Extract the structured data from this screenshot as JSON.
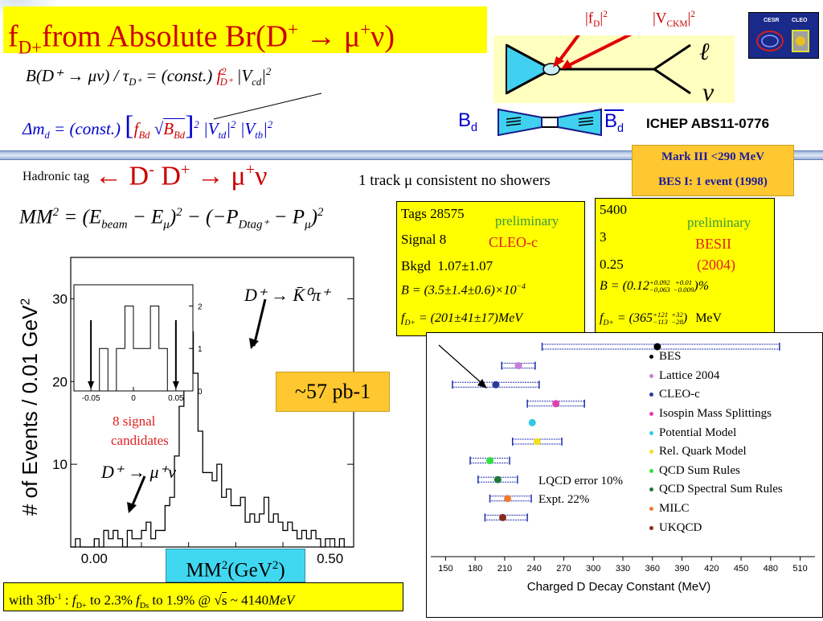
{
  "slide": {
    "title_text": "from Absolute Br(D",
    "title_prefix": "f",
    "title_sub": "D+",
    "title_sup": "+",
    "title_arrow": "→",
    "title_tail": "μ",
    "title_tail_sup": "+",
    "title_tail_end": "ν)"
  },
  "header_diagram": {
    "fd_label": "|f",
    "fd_sub": "D",
    "fd_tail": "|",
    "fd_sup": "2",
    "vckm_label": "|V",
    "vckm_sub": "CKM",
    "vckm_tail": "|",
    "vckm_sup": "2",
    "lepton_symbol": "ℓ",
    "neutrino_symbol": "ν",
    "bd_left": "B",
    "bd_left_sub": "d",
    "bd_right": "B",
    "bd_right_sub": "d",
    "ichep_label": "ICHEP ABS11-0776",
    "logo_left": "CESR",
    "logo_right": "CLEO"
  },
  "formulas": {
    "br_formula": "B(D⁺ → μν) / τ",
    "br_formula_sub": "D⁺",
    "br_formula_mid": " = (const.)",
    "br_formula_f": "f",
    "br_formula_f_sub": "D⁺",
    "br_formula_f_sup": "2",
    "br_formula_v": "|V",
    "br_formula_v_sub": "cd",
    "br_formula_v_tail": "|",
    "br_formula_v_sup": "2",
    "dm_formula_lhs": "Δm",
    "dm_formula_lhs_sub": "d",
    "dm_formula_mid": " = (const.)",
    "dm_formula_bracket": "f",
    "dm_formula_bracket_sub": "Bd",
    "dm_formula_sqrt": "B",
    "dm_formula_sqrt_sub": "Bd",
    "dm_formula_sq": "2",
    "dm_formula_vtd": "|V",
    "dm_formula_vtd_sub": "td",
    "dm_formula_vtd_tail": "|",
    "dm_formula_vtd_sup": "2",
    "dm_formula_vtb": "|V",
    "dm_formula_vtb_sub": "tb",
    "dm_formula_vtb_tail": "|",
    "dm_formula_vtb_sup": "2",
    "mm_formula_lhs": "MM",
    "mm_formula_lhs_sup": "2",
    "mm_formula_body": " = (E",
    "mm_formula_beam": "beam",
    "mm_formula_mid": " − E",
    "mm_formula_mu": "μ",
    "mm_formula_close": ")",
    "mm_formula_sq": "2",
    "mm_formula_p": " − (−P",
    "mm_formula_dtag": "Dtag⁺",
    "mm_formula_minus": " − P",
    "mm_formula_mu2": "μ",
    "mm_formula_close2": ")",
    "mm_formula_sq2": "2"
  },
  "tag_line": {
    "hadronic_tag": "Hadronic tag",
    "arrow": "←",
    "d_minus": "D",
    "d_minus_sup": "-",
    "d_plus": "D",
    "d_plus_sup": "+",
    "decay_arrow": "→",
    "mu": "μ",
    "mu_sup": "+",
    "nu": "ν",
    "note": "1 track μ consistent no showers"
  },
  "experiments": {
    "mark3": "Mark III <290 MeV",
    "bes1": "BES I: 1 event (1998)",
    "cleo_box": {
      "tags_label": "Tags",
      "tags_value": "28575",
      "signal_label": "Signal",
      "signal_value": "8",
      "bkgd_label": "Bkgd",
      "bkgd_value": "1.07±1.07",
      "preliminary": "preliminary",
      "experiment": "CLEO-c",
      "br_result": "B = (3.5±1.4±0.6)×10",
      "br_exp": "−4",
      "fd_result_prefix": "f",
      "fd_result_sub": "D+",
      "fd_result_value": " = (201±41±17)MeV"
    },
    "besii_box": {
      "tags_value": "5400",
      "signal_value": "3",
      "bkgd_value": "0.25",
      "preliminary": "preliminary",
      "experiment": "BESII",
      "year": "(2004)",
      "br_prefix": "B = (0.12",
      "br_up1": "+0.092",
      "br_dn1": "−0,063",
      "br_up2": "+0.01",
      "br_dn2": "−0.009",
      "br_suffix": ")%",
      "fd_prefix": "f",
      "fd_sub": "D+",
      "fd_value": " = (365",
      "fd_up1": "+121",
      "fd_dn1": "−113",
      "fd_up2": "+32",
      "fd_dn2": "−28",
      "fd_suffix": ")",
      "fd_unit": "MeV"
    }
  },
  "histogram": {
    "ylabel": "# of Events / 0.01 GeV",
    "ylabel_sup": "2",
    "xlabel": "MM",
    "xlabel_sup": "2",
    "xlabel_unit_open": "(GeV",
    "xlabel_unit_sup": "2",
    "xlabel_unit_close": ")",
    "k0_label": "D⁺ → K̄⁰π⁺",
    "mu_nu_label": "D⁺ → μ⁺ν",
    "lumi": "~57 pb-1",
    "signal_note_1": "8 signal",
    "signal_note_2": "candidates"
  },
  "bottom_note": {
    "text_start": "with 3fb",
    "text_start_sup": "-1",
    "text_colon": " : ",
    "fd": "f",
    "fd_sub": "D+",
    "fd_to": " to 2.3%   ",
    "fds": "f",
    "fds_sub": "Ds",
    "fds_to": " to 1.9% @ ",
    "sqrt_s": "s",
    "energy": " ~ 4140",
    "energy_unit": "MeV"
  },
  "comparison": {
    "lqcd_error": "LQCD error 10%",
    "expt_error": "Expt.  22%"
  },
  "chart_data": [
    {
      "type": "histogram",
      "title": "",
      "xlabel": "MM² (GeV²)",
      "ylabel": "# of Events / 0.01 GeV²",
      "xlim": [
        -0.05,
        0.55
      ],
      "ylim": [
        0,
        35
      ],
      "xticks": [
        "0.00",
        "0.50"
      ],
      "yticks": [
        "10",
        "20",
        "30"
      ],
      "bin_width": 0.01,
      "bin_left_edges": [
        -0.05,
        -0.04,
        -0.03,
        -0.02,
        -0.01,
        0.0,
        0.01,
        0.02,
        0.03,
        0.04,
        0.05,
        0.06,
        0.07,
        0.08,
        0.09,
        0.1,
        0.11,
        0.12,
        0.13,
        0.14,
        0.15,
        0.16,
        0.17,
        0.18,
        0.19,
        0.2,
        0.21,
        0.22,
        0.23,
        0.24,
        0.25,
        0.26,
        0.27,
        0.28,
        0.29,
        0.3,
        0.31,
        0.32,
        0.33,
        0.34,
        0.35,
        0.36,
        0.37,
        0.38,
        0.39,
        0.4,
        0.41,
        0.42,
        0.43,
        0.44,
        0.45,
        0.46,
        0.47,
        0.48,
        0.49,
        0.5,
        0.51,
        0.52,
        0.53,
        0.54
      ],
      "values": [
        0,
        1,
        0,
        0,
        0,
        1,
        0,
        2,
        1,
        2,
        1,
        0,
        2,
        1,
        1,
        2,
        3,
        1,
        2,
        2,
        5,
        6,
        11,
        17,
        29,
        26,
        21,
        14,
        9,
        9,
        8,
        10,
        6,
        7,
        5,
        5,
        6,
        3,
        4,
        3,
        4,
        6,
        3,
        4,
        3,
        2,
        3,
        2,
        1,
        2,
        1,
        2,
        1,
        0,
        1,
        1,
        0,
        1,
        0,
        0
      ]
    },
    {
      "type": "histogram",
      "title": "",
      "xlabel": "",
      "ylabel": "",
      "xlim": [
        -0.07,
        0.07
      ],
      "ylim": [
        0,
        2.5
      ],
      "xticks": [
        "-0.05",
        "0",
        "0.05"
      ],
      "yticks": [
        "0",
        "1",
        "2"
      ],
      "bin_width": 0.01,
      "bin_left_edges": [
        -0.05,
        -0.04,
        -0.03,
        -0.02,
        -0.01,
        0.0,
        0.01,
        0.02,
        0.03,
        0.04,
        0.05
      ],
      "values": [
        0,
        1,
        0,
        1,
        2,
        1,
        1,
        2,
        1,
        0,
        0
      ]
    },
    {
      "type": "scatter",
      "title": "",
      "xlabel": "Charged D  Decay Constant (MeV)",
      "ylabel": "",
      "xlim": [
        135,
        525
      ],
      "xticks": [
        "150",
        "180",
        "210",
        "240",
        "270",
        "300",
        "330",
        "360",
        "390",
        "420",
        "450",
        "480",
        "510"
      ],
      "series": [
        {
          "name": "BES",
          "color": "#000000",
          "x": 365,
          "xerr_low": 117,
          "xerr_high": 124
        },
        {
          "name": "Lattice 2004",
          "color": "#c77fd8",
          "x": 224,
          "xerr_low": 17,
          "xerr_high": 17
        },
        {
          "name": "CLEO-c",
          "color": "#2b3a9a",
          "x": 201,
          "xerr_low": 44,
          "xerr_high": 44
        },
        {
          "name": "Isospin Mass Splittings",
          "color": "#e040b0",
          "x": 262,
          "xerr_low": 29,
          "xerr_high": 29
        },
        {
          "name": "Potential Model",
          "color": "#30c8e8",
          "x": 238,
          "xerr_low": 0,
          "xerr_high": 0
        },
        {
          "name": "Rel. Quark Model",
          "color": "#f0e020",
          "x": 243,
          "xerr_low": 25,
          "xerr_high": 25
        },
        {
          "name": "QCD Sum Rules",
          "color": "#30e040",
          "x": 195,
          "xerr_low": 20,
          "xerr_high": 20
        },
        {
          "name": "QCD Spectral Sum Rules",
          "color": "#207a3a",
          "x": 203,
          "xerr_low": 20,
          "xerr_high": 20
        },
        {
          "name": "MILC",
          "color": "#f07a30",
          "x": 213,
          "xerr_low": 18,
          "xerr_high": 24
        },
        {
          "name": "UKQCD",
          "color": "#8a2a1a",
          "x": 208,
          "xerr_low": 18,
          "xerr_high": 25
        }
      ]
    }
  ]
}
